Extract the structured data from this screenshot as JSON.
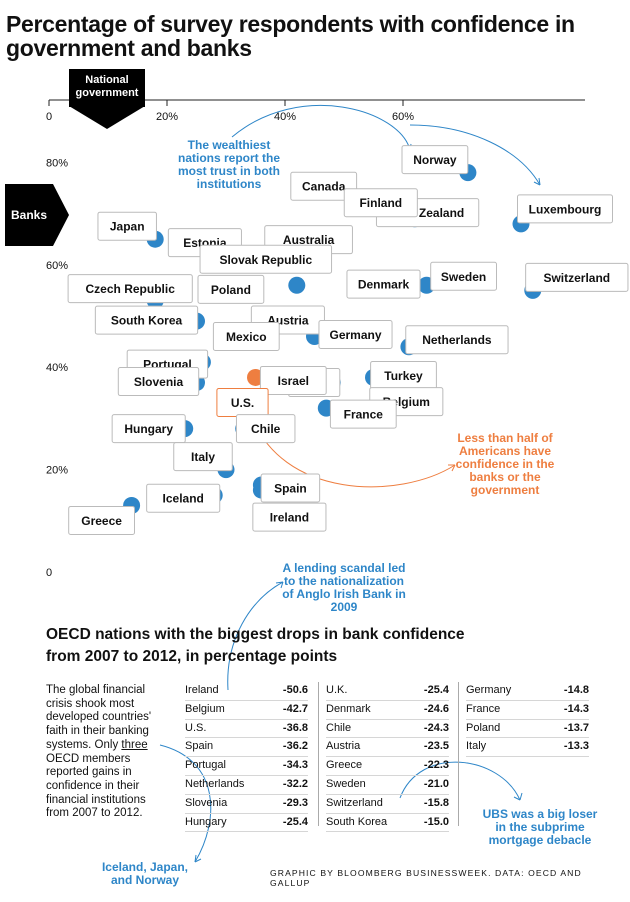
{
  "title": "Percentage of survey respondents with confidence in government and banks",
  "axis_tags": {
    "x": "National government",
    "y": "Banks"
  },
  "chart_data": {
    "type": "scatter",
    "xlabel": "National government",
    "ylabel": "Banks",
    "xlim": [
      0,
      80
    ],
    "ylim": [
      0,
      80
    ],
    "x_ticks": [
      "0",
      "20%",
      "40%",
      "60%"
    ],
    "y_ticks": [
      "0",
      "20%",
      "40%",
      "60%",
      "80%"
    ],
    "points": [
      {
        "country": "Norway",
        "x": 71,
        "y": 78
      },
      {
        "country": "Canada",
        "x": 53,
        "y": 73
      },
      {
        "country": "New Zealand",
        "x": 64,
        "y": 70
      },
      {
        "country": "Luxembourg",
        "x": 80,
        "y": 68
      },
      {
        "country": "Japan",
        "x": 18,
        "y": 65
      },
      {
        "country": "Finland",
        "x": 62,
        "y": 69
      },
      {
        "country": "Australia",
        "x": 44,
        "y": 61
      },
      {
        "country": "Estonia",
        "x": 31,
        "y": 61
      },
      {
        "country": "Sweden",
        "x": 64,
        "y": 56
      },
      {
        "country": "Switzerland",
        "x": 82,
        "y": 55
      },
      {
        "country": "Czech Republic",
        "x": 18,
        "y": 53
      },
      {
        "country": "Slovak Republic",
        "x": 42,
        "y": 56
      },
      {
        "country": "Denmark",
        "x": 55,
        "y": 57
      },
      {
        "country": "Poland",
        "x": 31,
        "y": 55
      },
      {
        "country": "Austria",
        "x": 41,
        "y": 50
      },
      {
        "country": "South Korea",
        "x": 25,
        "y": 49
      },
      {
        "country": "Mexico",
        "x": 37,
        "y": 46
      },
      {
        "country": "Germany",
        "x": 45,
        "y": 46
      },
      {
        "country": "Netherlands",
        "x": 61,
        "y": 44
      },
      {
        "country": "Portugal",
        "x": 26,
        "y": 41
      },
      {
        "country": "U.K.",
        "x": 48,
        "y": 37
      },
      {
        "country": "Turkey",
        "x": 55,
        "y": 38
      },
      {
        "country": "Slovenia",
        "x": 25,
        "y": 37
      },
      {
        "country": "Israel",
        "x": 37,
        "y": 38
      },
      {
        "country": "Belgium",
        "x": 57,
        "y": 36
      },
      {
        "country": "U.S.",
        "x": 35,
        "y": 38
      },
      {
        "country": "France",
        "x": 47,
        "y": 32
      },
      {
        "country": "Chile",
        "x": 33,
        "y": 28
      },
      {
        "country": "Hungary",
        "x": 23,
        "y": 28
      },
      {
        "country": "Italy",
        "x": 30,
        "y": 20
      },
      {
        "country": "Spain",
        "x": 36,
        "y": 17
      },
      {
        "country": "Ireland",
        "x": 36,
        "y": 16
      },
      {
        "country": "Iceland",
        "x": 28,
        "y": 15
      },
      {
        "country": "Greece",
        "x": 14,
        "y": 13
      }
    ],
    "highlight": "U.S.",
    "colors": {
      "dot": "#2e86c8",
      "highlight": "#ee7e40"
    }
  },
  "annotations": {
    "wealthy": "The wealthiest nations report the most trust in both institutions",
    "lessthan": "Less than half of Americans have confidence in the banks or the government",
    "lending": "A lending scandal led to the nationalization of Anglo Irish Bank in 2009",
    "ubs": "UBS was a big loser in the subprime mortgage debacle",
    "three": "Iceland, Japan, and Norway"
  },
  "table": {
    "title": "OECD nations with the biggest drops in bank confidence from 2007 to 2012, in percentage points",
    "intro_before": "The global financial crisis shook most developed countries' faith in their banking systems. Only ",
    "intro_link": "three",
    "intro_after": " OECD members reported gains in confidence in their financial institutions from 2007 to 2012.",
    "columns": [
      [
        [
          "Ireland",
          "-50.6"
        ],
        [
          "Belgium",
          "-42.7"
        ],
        [
          "U.S.",
          "-36.8"
        ],
        [
          "Spain",
          "-36.2"
        ],
        [
          "Portugal",
          "-34.3"
        ],
        [
          "Netherlands",
          "-32.2"
        ],
        [
          "Slovenia",
          "-29.3"
        ],
        [
          "Hungary",
          "-25.4"
        ]
      ],
      [
        [
          "U.K.",
          "-25.4"
        ],
        [
          "Denmark",
          "-24.6"
        ],
        [
          "Chile",
          "-24.3"
        ],
        [
          "Austria",
          "-23.5"
        ],
        [
          "Greece",
          "-22.3"
        ],
        [
          "Sweden",
          "-21.0"
        ],
        [
          "Switzerland",
          "-15.8"
        ],
        [
          "South Korea",
          "-15.0"
        ]
      ],
      [
        [
          "Germany",
          "-14.8"
        ],
        [
          "France",
          "-14.3"
        ],
        [
          "Poland",
          "-13.7"
        ],
        [
          "Italy",
          "-13.3"
        ]
      ]
    ]
  },
  "credit": "GRAPHIC BY BLOOMBERG BUSINESSWEEK. DATA: OECD AND GALLUP"
}
